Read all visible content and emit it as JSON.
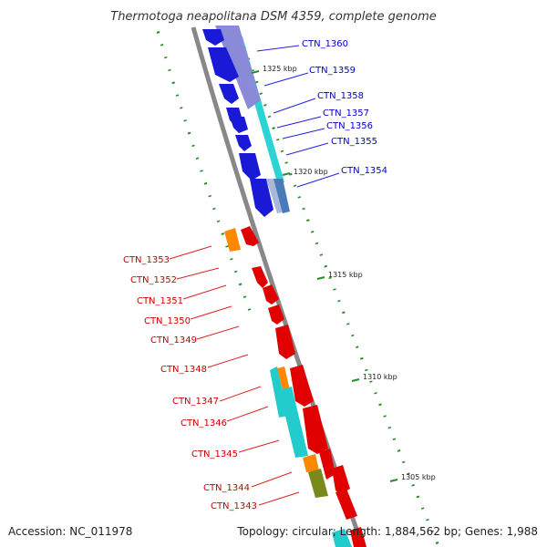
{
  "title": "Thermotoga neapolitana DSM 4359, complete genome",
  "footer": {
    "accession": "Accession: NC_011978",
    "topology": "Topology: circular; Length: 1,884,562 bp; Genes: 1,988"
  },
  "colors": {
    "forward": "#e00000",
    "reverse": "#0000cc",
    "cyan": "#22cccc",
    "orange": "#ff8800",
    "olive": "#7a8a1a",
    "backbone": "#888888",
    "ticks": "#2a8a2a"
  },
  "kbp_ticks": [
    "1325 kbp",
    "1320 kbp",
    "1315 kbp",
    "1310 kbp",
    "1305 kbp"
  ],
  "genes_reverse": [
    "CTN_1360",
    "CTN_1359",
    "CTN_1358",
    "CTN_1357",
    "CTN_1356",
    "CTN_1355",
    "CTN_1354"
  ],
  "genes_forward": [
    "CTN_1353",
    "CTN_1352",
    "CTN_1351",
    "CTN_1350",
    "CTN_1349",
    "CTN_1348",
    "CTN_1347",
    "CTN_1346",
    "CTN_1345",
    "CTN_1344",
    "CTN_1343"
  ]
}
